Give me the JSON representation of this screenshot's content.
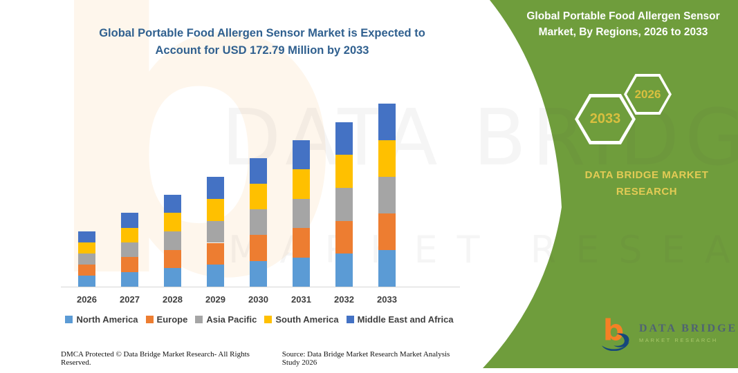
{
  "left": {
    "title": "Global Portable Food Allergen Sensor Market is Expected to Account for USD 172.79 Million by 2033",
    "footer_left": "DMCA Protected © Data Bridge Market Research-  All Rights Reserved.",
    "footer_right": "Source: Data Bridge Market Research  Market Analysis Study 2026"
  },
  "right": {
    "title": "Global Portable Food Allergen Sensor Market, By Regions, 2026 to 2033",
    "hex_large_year": "2033",
    "hex_small_year": "2026",
    "brand_line": "DATA BRIDGE MARKET RESEARCH",
    "logo_name": "DATA BRIDGE",
    "logo_sub": "MARKET RESEARCH"
  },
  "watermark": {
    "letter": "b",
    "line1": "DATA BRIDGE",
    "line2": "MARKET RESEARCH"
  },
  "colors": {
    "panel_green": "#6f9d3c",
    "title_blue": "#30608f",
    "hex_year_gold": "#d9bf3f",
    "brand_yellow": "#e3cb55",
    "logo_orange": "#f58025",
    "logo_blue": "#16477c"
  },
  "chart_data": {
    "type": "bar",
    "stacked": true,
    "title": "Global Portable Food Allergen Sensor Market is Expected to Account for USD 172.79 Million by 2033",
    "unit": "USD Million",
    "categories": [
      "2026",
      "2027",
      "2028",
      "2029",
      "2030",
      "2031",
      "2032",
      "2033"
    ],
    "series": [
      {
        "name": "North America",
        "color": "#5B9BD5",
        "values": [
          10.4,
          13.9,
          17.4,
          20.7,
          24.3,
          27.7,
          31.1,
          34.6
        ]
      },
      {
        "name": "Europe",
        "color": "#ED7D31",
        "values": [
          10.4,
          13.9,
          17.4,
          20.7,
          24.3,
          27.7,
          31.1,
          34.6
        ]
      },
      {
        "name": "Asia Pacific",
        "color": "#A5A5A5",
        "values": [
          10.4,
          13.9,
          17.4,
          20.7,
          24.3,
          27.7,
          31.1,
          34.6
        ]
      },
      {
        "name": "South America",
        "color": "#FFC000",
        "values": [
          10.4,
          13.9,
          17.4,
          20.7,
          24.3,
          27.7,
          31.1,
          34.6
        ]
      },
      {
        "name": "Middle East and Africa",
        "color": "#4472C4",
        "values": [
          10.4,
          13.9,
          17.4,
          20.7,
          24.3,
          27.7,
          31.1,
          34.6
        ]
      }
    ],
    "totals": [
      52.2,
      69.6,
      86.9,
      103.7,
      121.7,
      138.4,
      155.4,
      172.79
    ],
    "ylim": [
      0,
      180
    ],
    "legend_position": "bottom",
    "grid": false
  }
}
